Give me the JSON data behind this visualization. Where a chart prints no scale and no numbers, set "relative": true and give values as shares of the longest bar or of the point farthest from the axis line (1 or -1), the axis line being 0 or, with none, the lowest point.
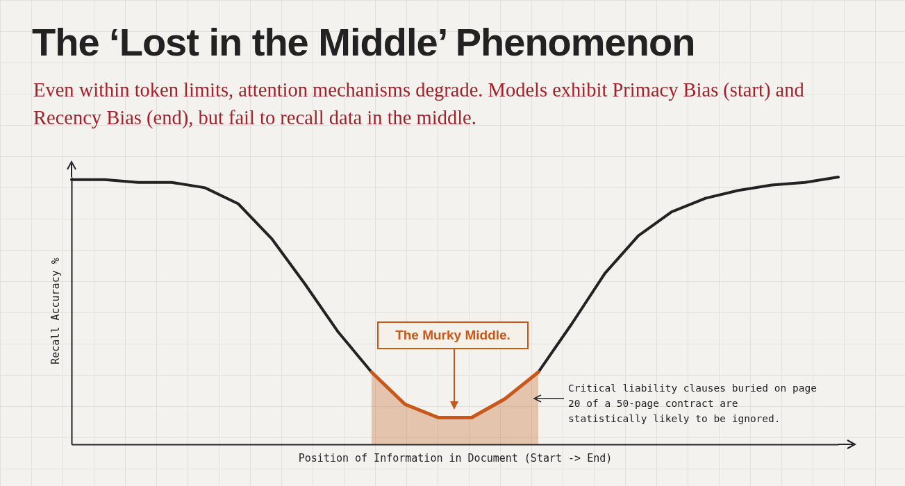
{
  "chart_data": {
    "type": "line",
    "title": "The ‘Lost in the Middle’ Phenomenon",
    "subtitle": "Even within token limits, attention mechanisms degrade. Models exhibit Primacy Bias (start) and Recency Bias (end), but fail to recall data in the middle.",
    "xlabel": "Position of Information in Document (Start -> End)",
    "ylabel": "Recall Accuracy %",
    "relative": true,
    "categories": [
      null,
      null,
      null,
      null,
      null,
      null,
      null,
      null,
      null,
      null,
      null,
      null,
      null,
      null,
      null,
      null,
      null,
      null,
      null,
      null,
      null,
      null,
      null,
      null
    ],
    "series": [
      {
        "type": "line",
        "color": "#222222",
        "values": [
          0.99,
          0.99,
          0.98,
          0.98,
          0.96,
          0.9,
          0.77,
          0.6,
          0.42,
          0.27,
          null,
          null,
          null,
          null,
          0.27,
          0.45,
          0.64,
          0.78,
          0.87,
          0.92,
          0.95,
          0.97,
          0.98,
          1
        ]
      },
      {
        "type": "area",
        "color": "#c8581a",
        "values": [
          null,
          null,
          null,
          null,
          null,
          null,
          null,
          null,
          null,
          0.27,
          0.15,
          0.1,
          0.1,
          0.17,
          0.27,
          null,
          null,
          null,
          null,
          null,
          null,
          null,
          null,
          null
        ]
      }
    ],
    "annotations": [
      "The Murky Middle.",
      "Critical liability clauses buried on page 20 of a 50-page contract are statistically likely to be ignored."
    ]
  }
}
